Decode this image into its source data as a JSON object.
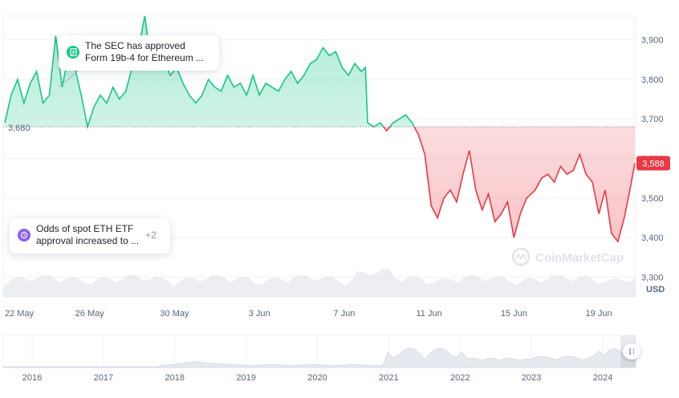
{
  "chart_data": {
    "type": "area",
    "currency": "USD",
    "baseline": {
      "value": 3680,
      "label": "3,680"
    },
    "current": {
      "value": 3588,
      "label": "3,588"
    },
    "y_ticks": [
      "3,300",
      "3,400",
      "3,500",
      "3,600",
      "3,700",
      "3,800",
      "3,900"
    ],
    "y_tick_values": [
      3300,
      3400,
      3500,
      3600,
      3700,
      3800,
      3900
    ],
    "ylim": [
      3250,
      3960
    ],
    "x_ticks": [
      "22 May",
      "26 May",
      "30 May",
      "3 Jun",
      "7 Jun",
      "11 Jun",
      "15 Jun",
      "19 Jun"
    ],
    "x_tick_days": [
      0,
      4,
      8,
      12,
      16,
      20,
      24,
      28
    ],
    "x_range_days": [
      0,
      29.7
    ],
    "up_color": "#16c784",
    "down_color": "#ea3943",
    "series": [
      {
        "day": [
          0,
          0.3,
          0.6,
          0.9,
          1.2,
          1.5,
          1.8,
          2.1,
          2.4,
          2.7,
          3.0,
          3.3,
          3.6,
          3.9,
          4.2,
          4.5,
          4.8,
          5.1,
          5.4,
          5.7,
          6.0,
          6.3,
          6.6,
          6.9,
          7.2,
          7.5,
          7.8,
          8.1,
          8.4,
          8.7,
          9.0,
          9.3,
          9.6,
          9.9,
          10.2,
          10.5,
          10.8,
          11.1,
          11.4,
          11.7,
          12.0,
          12.3,
          12.6,
          12.9,
          13.2,
          13.5,
          13.8,
          14.1,
          14.4,
          14.7,
          15.0,
          15.3,
          15.6,
          15.9,
          16.2,
          16.5,
          16.8,
          17.0,
          17.1,
          17.4,
          17.7,
          18.0,
          18.3,
          18.6,
          18.9,
          19.2,
          19.5,
          19.8,
          20.1,
          20.4,
          20.7,
          21.0,
          21.3,
          21.6,
          21.9,
          22.2,
          22.5,
          22.8,
          23.1,
          23.4,
          23.7,
          24.0,
          24.3,
          24.6,
          25.0,
          25.3,
          25.6,
          25.9,
          26.2,
          26.5,
          26.8,
          27.1,
          27.4,
          27.7,
          28.0,
          28.3,
          28.6,
          28.9,
          29.2,
          29.5,
          29.7
        ],
        "price": [
          3690,
          3760,
          3800,
          3740,
          3790,
          3820,
          3740,
          3760,
          3910,
          3780,
          3860,
          3830,
          3760,
          3680,
          3730,
          3760,
          3740,
          3780,
          3750,
          3770,
          3830,
          3880,
          3960,
          3840,
          3880,
          3850,
          3810,
          3830,
          3790,
          3760,
          3740,
          3760,
          3800,
          3780,
          3770,
          3810,
          3780,
          3790,
          3760,
          3810,
          3760,
          3790,
          3780,
          3770,
          3800,
          3820,
          3790,
          3810,
          3840,
          3850,
          3880,
          3860,
          3870,
          3830,
          3810,
          3840,
          3820,
          3830,
          3690,
          3680,
          3690,
          3670,
          3690,
          3700,
          3710,
          3690,
          3660,
          3610,
          3480,
          3450,
          3500,
          3520,
          3490,
          3560,
          3620,
          3520,
          3470,
          3510,
          3440,
          3460,
          3490,
          3400,
          3460,
          3500,
          3520,
          3550,
          3560,
          3540,
          3580,
          3560,
          3570,
          3610,
          3560,
          3540,
          3460,
          3520,
          3410,
          3390,
          3450,
          3530,
          3588
        ]
      }
    ],
    "overview": {
      "x_ticks": [
        "2016",
        "2017",
        "2018",
        "2019",
        "2020",
        "2021",
        "2022",
        "2023",
        "2024"
      ]
    }
  },
  "annotations": [
    {
      "text_line1": "The SEC has approved",
      "text_line2": "Form 19b-4 for Ethereum ..."
    },
    {
      "text_line1": "Odds of spot ETH ETF",
      "text_line2": "approval increased to ...",
      "more": "+2"
    }
  ],
  "watermark": "CoinMarketCap",
  "colors": {
    "up": "#16c784",
    "down": "#ea3943",
    "grid": "#eff2f5",
    "axis_text": "#58667e"
  }
}
